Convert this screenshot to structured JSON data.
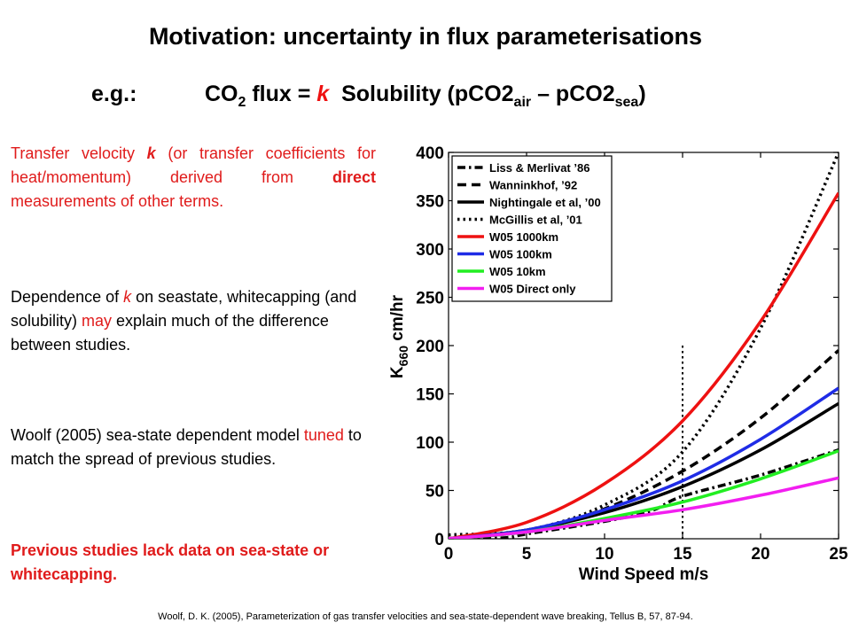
{
  "title": "Motivation: uncertainty in flux parameterisations",
  "equation": {
    "prefix": "e.g.:",
    "co": "CO",
    "co_sub": "2",
    "flux_eq": " flux = ",
    "k": "k",
    "solubility": "  Solubility (pCO2",
    "air_sub": "air",
    "dash": " – pCO2",
    "sea_sub": "sea",
    "close": ")"
  },
  "paragraphs": {
    "p1": {
      "a": "Transfer velocity ",
      "k": "k",
      "b": " (or transfer coefficients for heat/momentum) derived from ",
      "direct": "direct",
      "c": " measurements of other terms."
    },
    "p2": {
      "a": "Dependence of ",
      "k": "k",
      "b": " on seastate, whitecapping (and solubility) ",
      "may": "may",
      "c": " explain much of the difference between studies."
    },
    "p3": {
      "a": "Woolf (2005) sea-state dependent model ",
      "tuned": "tuned",
      "b": " to match the spread of previous studies."
    },
    "p4": "Previous studies lack data on sea-state or whitecapping."
  },
  "citation": "Woolf, D. K. (2005), Parameterization of gas transfer velocities and sea-state-dependent wave breaking, Tellus B, 57, 87-94.",
  "chart_data": {
    "type": "line",
    "xlabel": "Wind Speed m/s",
    "ylabel": "K",
    "ylabel_sub": "660",
    "ylabel_unit": " cm/hr",
    "xlim": [
      0,
      25
    ],
    "ylim": [
      0,
      400
    ],
    "xticks": [
      0,
      5,
      10,
      15,
      20,
      25
    ],
    "yticks": [
      0,
      50,
      100,
      150,
      200,
      250,
      300,
      350,
      400
    ],
    "grid": false,
    "legend_position": "top-left",
    "vline": {
      "x": 15,
      "y_top": 200
    },
    "series": [
      {
        "name": "Liss & Merlivat ’86",
        "color": "#000000",
        "dash": "dashdot",
        "x": [
          0,
          3.6,
          5,
          10,
          13,
          15,
          20,
          25
        ],
        "y": [
          0,
          1,
          5,
          18,
          29,
          44,
          66,
          92
        ]
      },
      {
        "name": "Wanninkhof, ’92",
        "color": "#000000",
        "dash": "dashed",
        "x": [
          0,
          5,
          10,
          15,
          20,
          25
        ],
        "y": [
          0,
          8,
          31,
          70,
          125,
          195
        ]
      },
      {
        "name": "Nightingale et al, ’00",
        "color": "#000000",
        "dash": "solid",
        "x": [
          0,
          5,
          10,
          15,
          20,
          25
        ],
        "y": [
          0,
          9,
          27,
          54,
          92,
          140
        ]
      },
      {
        "name": "McGillis et al, ’01",
        "color": "#000000",
        "dash": "dotted",
        "x": [
          0,
          5,
          10,
          15,
          20,
          25
        ],
        "y": [
          4,
          9,
          35,
          90,
          218,
          400
        ]
      },
      {
        "name": "W05 1000km",
        "color": "#ee1111",
        "dash": "solid",
        "x": [
          0,
          5,
          10,
          15,
          20,
          25
        ],
        "y": [
          0,
          17,
          57,
          122,
          225,
          358
        ]
      },
      {
        "name": "W05 100km",
        "color": "#1f2ce6",
        "dash": "solid",
        "x": [
          0,
          5,
          10,
          15,
          20,
          25
        ],
        "y": [
          0,
          9,
          30,
          60,
          103,
          156
        ]
      },
      {
        "name": "W05 10km",
        "color": "#22ee22",
        "dash": "solid",
        "x": [
          0,
          5,
          10,
          15,
          20,
          25
        ],
        "y": [
          0,
          7,
          21,
          38,
          62,
          91
        ]
      },
      {
        "name": "W05 Direct only",
        "color": "#f21ef0",
        "dash": "solid",
        "x": [
          0,
          5,
          10,
          15,
          20,
          25
        ],
        "y": [
          0,
          7,
          19,
          30,
          45,
          63
        ]
      }
    ]
  }
}
